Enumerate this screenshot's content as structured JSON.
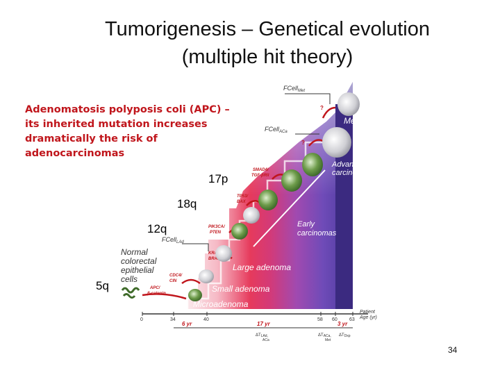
{
  "title": {
    "line1": "Tumorigenesis – Genetical evolution",
    "line2": "(multiple hit theory)"
  },
  "note": "Adenomatosis polyposis coli (APC) – its inherited mutation increases dramatically the risk of adenocarcinomas",
  "chromosome_labels": [
    "17p",
    "18q",
    "12q",
    "5q"
  ],
  "page_number": "34",
  "figure": {
    "stages": [
      "Metastasis",
      "Advanced carcinoma",
      "Early carcinomas",
      "Large adenoma",
      "Small adenoma",
      "Microadenoma"
    ],
    "start_label": "Normal colorectal epithelial cells",
    "fcell": {
      "met": "FCell",
      "met_sub": "Met",
      "aca": "FCell",
      "aca_sub": "ACa",
      "lad": "FCell",
      "lad_sub": "LAd"
    },
    "genes": {
      "smad4": "SMAD4/",
      "tgfb": "TGF-βRII",
      "tp53": "TP53/",
      "bax": "BAX",
      "pik3ca": "PIK3CA/",
      "pten": "PTEN",
      "kras": "KRAS/",
      "braf": "BRAF",
      "cdc4": "CDC4/",
      "cin": "CIN",
      "apc": "APC/",
      "bcat": "β-catenin"
    },
    "question_marks": [
      "?",
      "?"
    ],
    "axis": {
      "label_line1": "Patient",
      "label_line2": "Age (yr)",
      "ticks": [
        "0",
        "34",
        "40",
        "58",
        "60",
        "63"
      ]
    },
    "intervals": {
      "first": "6 yr",
      "second": "17 yr",
      "third": "3 yr"
    },
    "delta_labels": {
      "d1": "ΔT",
      "d1_sub": "LAd,",
      "d1_sub2": "ACa",
      "d2": "ΔT",
      "d2_sub": "ACa,",
      "d2_sub2": "Met",
      "d3": "ΔT",
      "d3_sub": "Dxp"
    }
  }
}
